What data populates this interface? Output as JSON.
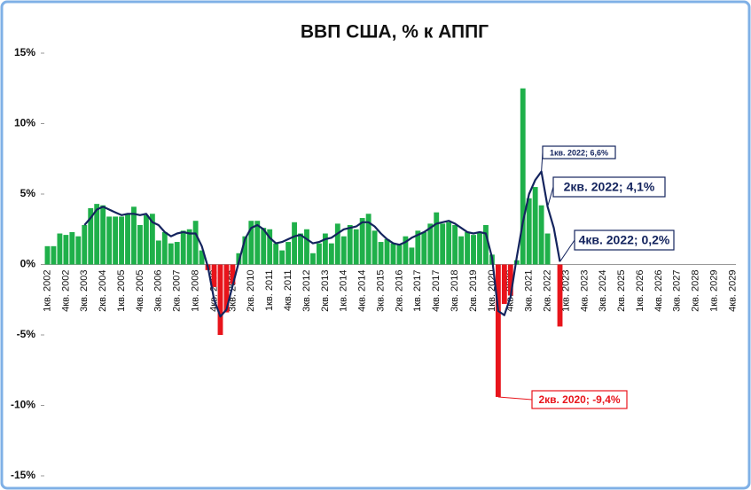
{
  "chart_data": {
    "type": "bar",
    "title": "ВВП США, % к АППГ",
    "categories": [
      "1кв. 2002",
      null,
      null,
      "4кв. 2002",
      null,
      null,
      "3кв. 2003",
      null,
      null,
      "2кв. 2004",
      null,
      null,
      "1кв. 2005",
      null,
      null,
      "4кв. 2005",
      null,
      null,
      "3кв. 2006",
      null,
      null,
      "2кв. 2007",
      null,
      null,
      "1кв. 2008",
      null,
      null,
      "4кв. 2008",
      null,
      null,
      "3кв. 2009",
      null,
      null,
      "2кв. 2010",
      null,
      null,
      "1кв. 2011",
      null,
      null,
      "4кв. 2011",
      null,
      null,
      "3кв. 2012",
      null,
      null,
      "2кв. 2013",
      null,
      null,
      "1кв. 2014",
      null,
      null,
      "4кв. 2014",
      null,
      null,
      "3кв. 2015",
      null,
      null,
      "2кв. 2016",
      null,
      null,
      "1кв. 2017",
      null,
      null,
      "4кв. 2017",
      null,
      null,
      "3кв. 2018",
      null,
      null,
      "2кв. 2019",
      null,
      null,
      "1кв. 2020",
      null,
      null,
      "4кв. 2020",
      null,
      null,
      "3кв. 2021",
      null,
      null,
      "2кв. 2022",
      null,
      null,
      "1кв. 2023",
      null,
      null,
      "4кв. 2023",
      null,
      null,
      "3кв. 2024",
      null,
      null,
      "2кв. 2025",
      null,
      null,
      "1кв. 2026",
      null,
      null,
      "4кв. 2026",
      null,
      null,
      "3кв. 2027",
      null,
      null,
      "2кв. 2028",
      null,
      null,
      "1кв. 2029",
      null,
      null,
      "4кв. 2029"
    ],
    "series": [
      {
        "type": "bar",
        "positive_color": "#1fb04a",
        "negative_color": "#e8141b",
        "values": [
          1.3,
          1.3,
          2.2,
          2.1,
          2.3,
          2.0,
          2.8,
          4.0,
          4.3,
          4.2,
          3.4,
          3.4,
          3.4,
          3.6,
          4.1,
          2.8,
          3.5,
          3.6,
          1.7,
          2.3,
          1.5,
          1.6,
          2.4,
          2.5,
          3.1,
          1.0,
          -0.4,
          -1.6,
          -5.0,
          -3.4,
          -1.4,
          0.8,
          2.0,
          3.1,
          3.1,
          2.6,
          2.5,
          1.5,
          1.0,
          1.6,
          3.0,
          2.2,
          2.5,
          0.8,
          1.5,
          2.2,
          1.5,
          2.9,
          2.0,
          2.8,
          2.5,
          3.3,
          3.6,
          2.4,
          1.6,
          1.8,
          1.5,
          1.4,
          2.0,
          1.2,
          2.4,
          2.3,
          2.9,
          3.7,
          2.9,
          3.0,
          2.8,
          2.0,
          2.3,
          2.1,
          2.3,
          2.8,
          0.7,
          -9.4,
          -2.8,
          -2.2,
          0.3,
          12.5,
          4.7,
          5.5,
          4.2,
          2.2,
          null,
          -4.4,
          null,
          null,
          null,
          null,
          null,
          null,
          null,
          null,
          null,
          null,
          null,
          null,
          null,
          null,
          null,
          null,
          null,
          null,
          null,
          null,
          null,
          null,
          null,
          null,
          null,
          null,
          null,
          null
        ]
      },
      {
        "type": "line",
        "color": "#14245e",
        "values": [
          null,
          null,
          null,
          null,
          null,
          null,
          2.8,
          3.3,
          3.9,
          4.1,
          3.9,
          3.7,
          3.5,
          3.6,
          3.6,
          3.5,
          3.6,
          3.0,
          2.8,
          2.3,
          2.0,
          2.2,
          2.3,
          2.2,
          2.2,
          1.3,
          -0.2,
          -2.5,
          -3.7,
          -3.2,
          -1.5,
          0.2,
          1.8,
          2.6,
          2.8,
          2.5,
          1.9,
          1.5,
          1.6,
          1.8,
          2.0,
          2.1,
          1.8,
          1.5,
          1.6,
          1.8,
          1.9,
          2.2,
          2.5,
          2.6,
          2.7,
          3.0,
          3.0,
          2.7,
          2.2,
          1.8,
          1.5,
          1.4,
          1.6,
          1.9,
          2.1,
          2.3,
          2.6,
          2.9,
          3.0,
          3.1,
          2.9,
          2.6,
          2.3,
          2.2,
          2.3,
          2.2,
          0.5,
          -3.3,
          -3.6,
          -2.3,
          0.5,
          3.0,
          5.0,
          6.0,
          6.6,
          4.1,
          2.6,
          0.2,
          null,
          null,
          null,
          null,
          null,
          null,
          null,
          null,
          null,
          null,
          null,
          null,
          null,
          null,
          null,
          null,
          null,
          null,
          null,
          null,
          null,
          null,
          null,
          null,
          null,
          null,
          null,
          null
        ]
      }
    ],
    "annotations": [
      "1кв. 2022; 6,6%",
      "2кв. 2022; 4,1%",
      "4кв. 2022; 0,2%",
      "2кв. 2020; -9,4%"
    ],
    "ylim": [
      -15,
      15
    ],
    "yticks": [
      {
        "value": -15,
        "label": "-15%"
      },
      {
        "value": -10,
        "label": "-10%"
      },
      {
        "value": -5,
        "label": "-5%"
      },
      {
        "value": 0,
        "label": "0%"
      },
      {
        "value": 5,
        "label": "5%"
      },
      {
        "value": 10,
        "label": "10%"
      },
      {
        "value": 15,
        "label": "15%"
      }
    ],
    "grid": false
  }
}
